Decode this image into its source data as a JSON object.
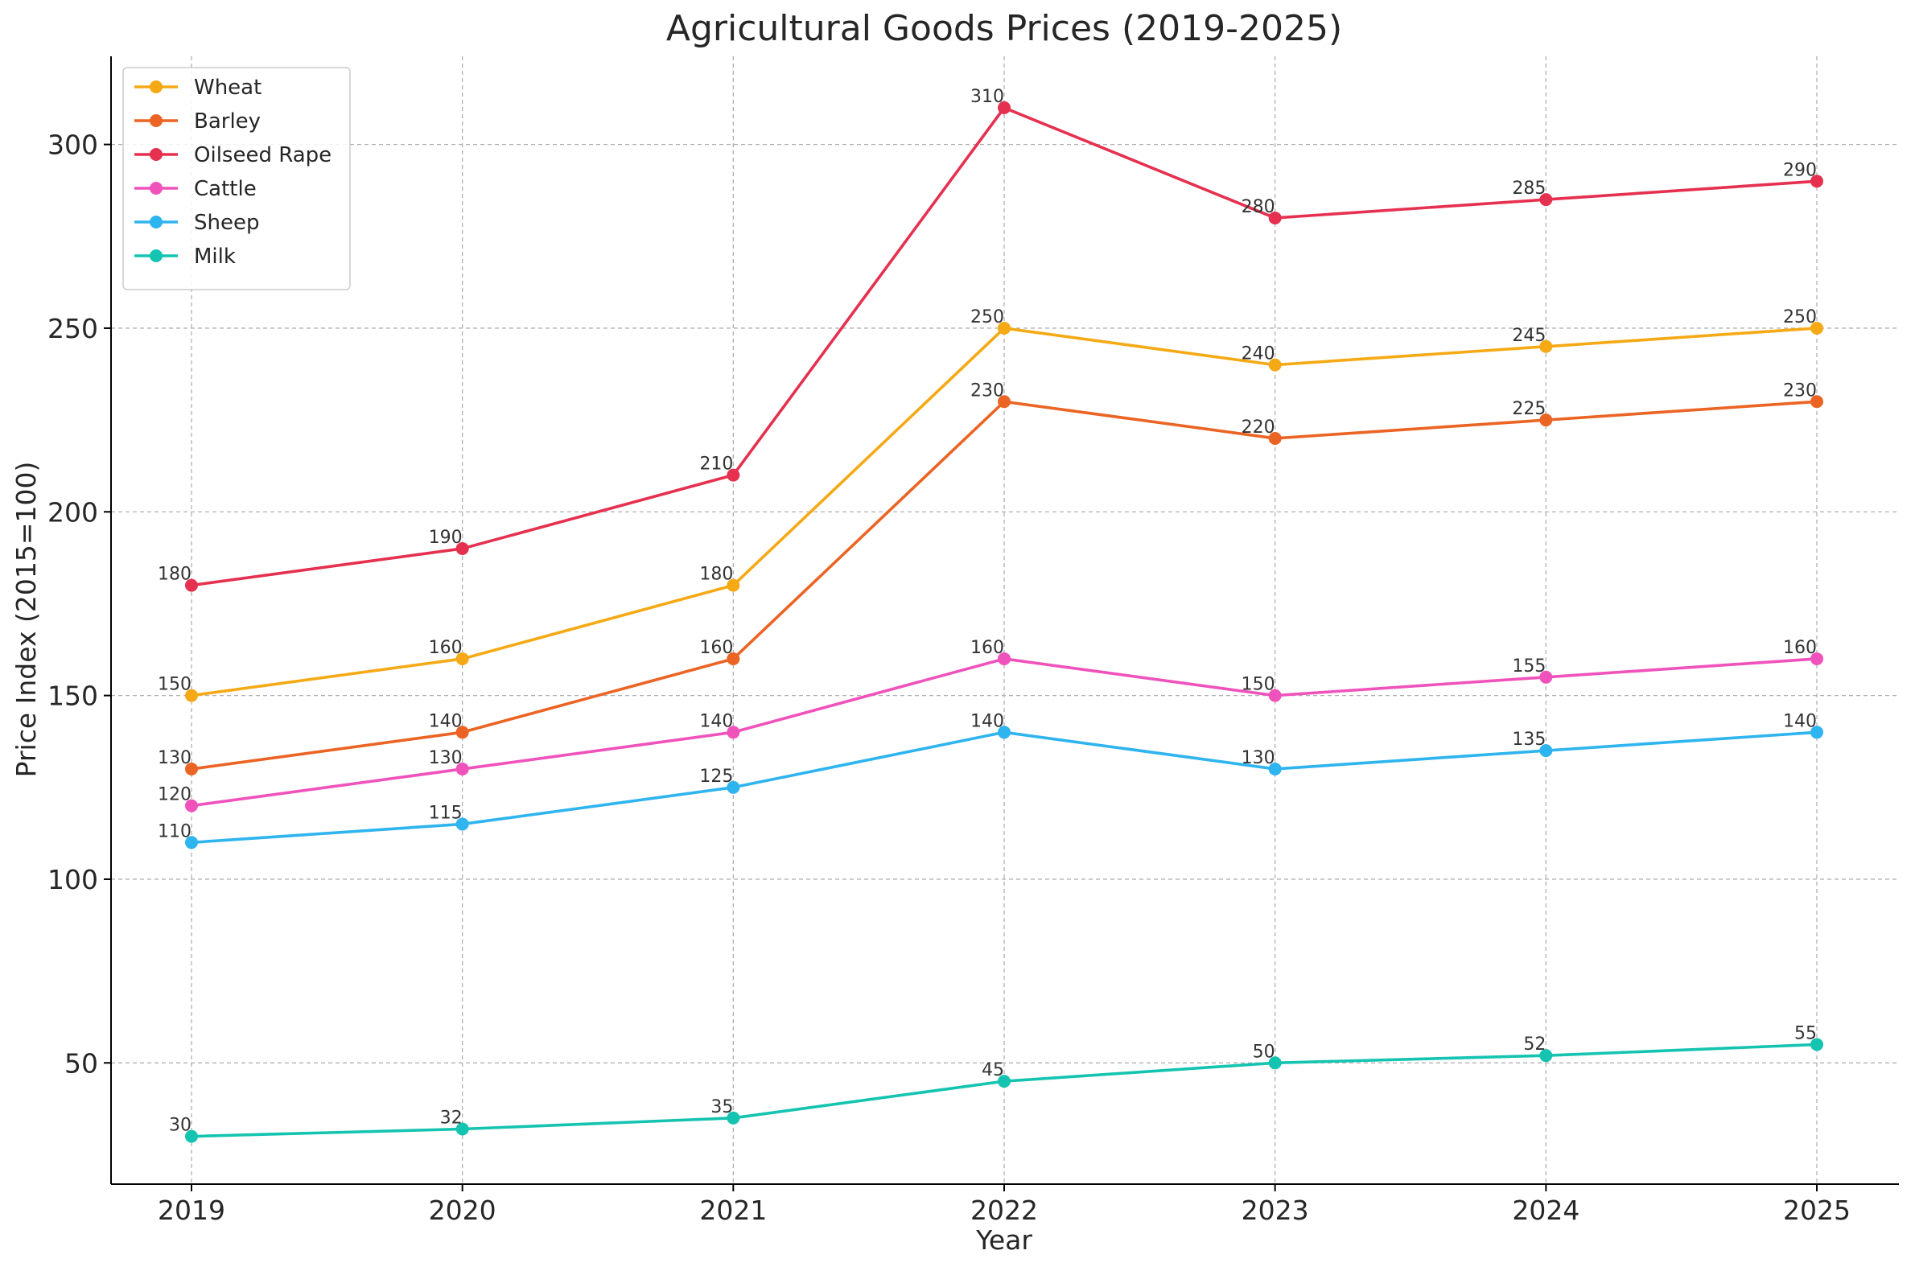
{
  "chart_data": {
    "type": "line",
    "title": "Agricultural Goods Prices (2019-2025)",
    "xlabel": "Year",
    "ylabel": "Price Index (2015=100)",
    "categories": [
      "2019",
      "2020",
      "2021",
      "2022",
      "2023",
      "2024",
      "2025"
    ],
    "ylim": [
      17,
      324
    ],
    "yticks": [
      50,
      100,
      150,
      200,
      250,
      300
    ],
    "grid": true,
    "legend_position": "top-left",
    "markers": "circle",
    "series": [
      {
        "name": "Wheat",
        "color": "#F5A915",
        "values": [
          150,
          160,
          180,
          250,
          240,
          245,
          250
        ]
      },
      {
        "name": "Barley",
        "color": "#EB6424",
        "values": [
          130,
          140,
          160,
          230,
          220,
          225,
          230
        ]
      },
      {
        "name": "Oilseed Rape",
        "color": "#E6304F",
        "values": [
          180,
          190,
          210,
          310,
          280,
          285,
          290
        ]
      },
      {
        "name": "Cattle",
        "color": "#F052BC",
        "values": [
          120,
          130,
          140,
          160,
          150,
          155,
          160
        ]
      },
      {
        "name": "Sheep",
        "color": "#2EB4EF",
        "values": [
          110,
          115,
          125,
          140,
          130,
          135,
          140
        ]
      },
      {
        "name": "Milk",
        "color": "#14C4B0",
        "values": [
          30,
          32,
          35,
          45,
          50,
          52,
          55
        ]
      }
    ]
  }
}
